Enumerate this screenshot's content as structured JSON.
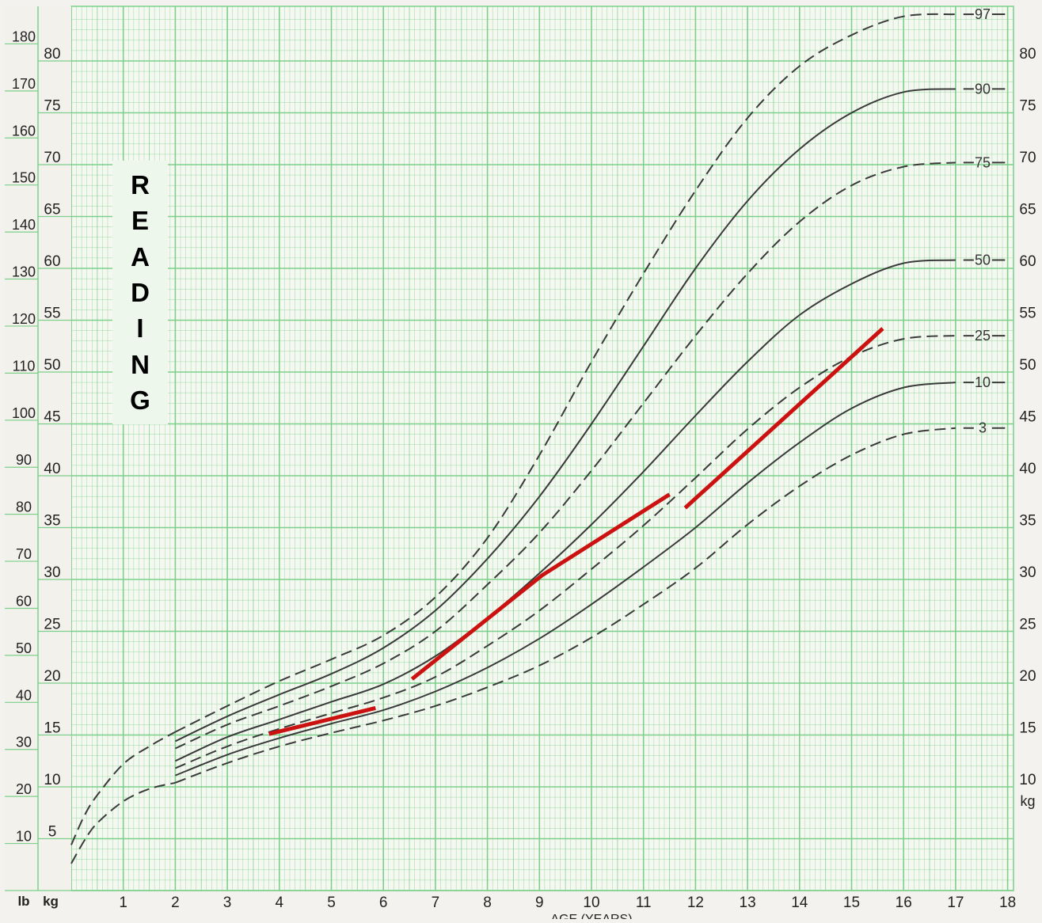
{
  "chart_data": {
    "type": "line",
    "title": "",
    "subtitle": "",
    "xlabel": "AGE (YEARS)",
    "ylabel_left_primary": "lb",
    "ylabel_left_secondary": "kg",
    "ylabel_right": "kg",
    "x_ticks": [
      "1",
      "2",
      "3",
      "4",
      "5",
      "6",
      "7",
      "8",
      "9",
      "10",
      "11",
      "12",
      "13",
      "14",
      "15",
      "16",
      "17",
      "18"
    ],
    "xlim": [
      0,
      18
    ],
    "ylim_kg": [
      0,
      84
    ],
    "kg_ticks": [
      "5",
      "10",
      "15",
      "20",
      "25",
      "30",
      "35",
      "40",
      "45",
      "50",
      "55",
      "60",
      "65",
      "70",
      "75",
      "80"
    ],
    "kg_ticks_right": [
      "10",
      "15",
      "20",
      "25",
      "30",
      "35",
      "40",
      "45",
      "50",
      "55",
      "60",
      "65",
      "70",
      "75",
      "80"
    ],
    "lb_ticks": [
      "10",
      "20",
      "30",
      "40",
      "50",
      "60",
      "70",
      "80",
      "90",
      "100",
      "110",
      "120",
      "130",
      "140",
      "150",
      "160",
      "170",
      "180"
    ],
    "grid": true,
    "grid_color": "#7dcf8a",
    "percentile_color": "#3a3a3a",
    "series": [
      {
        "name": "97",
        "style": "dashed",
        "x": [
          2,
          3,
          4,
          5,
          6,
          7,
          8,
          9,
          10,
          11,
          12,
          13,
          14,
          15,
          16,
          17
        ],
        "y": [
          15.3,
          17.8,
          20.2,
          22.3,
          24.6,
          28.3,
          34.0,
          42.0,
          51.0,
          59.5,
          67.5,
          74.5,
          79.5,
          82.5,
          84.3,
          84.5
        ]
      },
      {
        "name": "90",
        "style": "solid",
        "x": [
          2,
          3,
          4,
          5,
          6,
          7,
          8,
          9,
          10,
          11,
          12,
          13,
          14,
          15,
          16,
          17
        ],
        "y": [
          14.4,
          16.8,
          18.9,
          20.9,
          23.4,
          27.0,
          32.0,
          38.0,
          45.0,
          52.5,
          60.0,
          66.5,
          71.5,
          75.0,
          77.0,
          77.3
        ]
      },
      {
        "name": "75",
        "style": "dashed",
        "x": [
          2,
          3,
          4,
          5,
          6,
          7,
          8,
          9,
          10,
          11,
          12,
          13,
          14,
          15,
          16,
          17
        ],
        "y": [
          13.7,
          16.0,
          17.8,
          19.7,
          21.9,
          25.0,
          29.5,
          34.5,
          40.5,
          47.0,
          53.5,
          59.5,
          64.5,
          68.0,
          69.8,
          70.2
        ]
      },
      {
        "name": "50",
        "style": "solid",
        "x": [
          2,
          3,
          4,
          5,
          6,
          7,
          8,
          9,
          10,
          11,
          12,
          13,
          14,
          15,
          16,
          17
        ],
        "y": [
          12.5,
          14.8,
          16.5,
          18.2,
          19.9,
          22.6,
          26.3,
          30.6,
          35.3,
          40.4,
          45.8,
          51.0,
          55.5,
          58.5,
          60.5,
          60.8
        ]
      },
      {
        "name": "25",
        "style": "dashed",
        "x": [
          2,
          3,
          4,
          5,
          6,
          7,
          8,
          9,
          10,
          11,
          12,
          13,
          14,
          15,
          16,
          17
        ],
        "y": [
          11.8,
          13.9,
          15.6,
          17.1,
          18.6,
          20.6,
          23.6,
          27.0,
          31.0,
          35.2,
          39.8,
          44.5,
          48.5,
          51.5,
          53.2,
          53.5
        ]
      },
      {
        "name": "10",
        "style": "solid",
        "x": [
          2,
          3,
          4,
          5,
          6,
          7,
          8,
          9,
          10,
          11,
          12,
          13,
          14,
          15,
          16,
          17
        ],
        "y": [
          11.1,
          13.1,
          14.7,
          16.1,
          17.4,
          19.2,
          21.5,
          24.3,
          27.6,
          31.2,
          35.0,
          39.3,
          43.2,
          46.5,
          48.5,
          49.0
        ]
      },
      {
        "name": "3",
        "style": "dashed",
        "x": [
          2,
          3,
          4,
          5,
          6,
          7,
          8,
          9,
          10,
          11,
          12,
          13,
          14,
          15,
          16,
          17
        ],
        "y": [
          10.4,
          12.3,
          13.9,
          15.2,
          16.4,
          17.8,
          19.6,
          21.7,
          24.4,
          27.6,
          31.1,
          35.3,
          39.0,
          42.0,
          44.0,
          44.6
        ]
      }
    ],
    "infant_curves": [
      {
        "style": "dashed",
        "x": [
          0,
          0.25,
          0.5,
          1,
          1.5,
          2
        ],
        "y": [
          4.4,
          7.2,
          9.2,
          12.2,
          13.9,
          15.3
        ]
      },
      {
        "style": "dashed",
        "x": [
          0,
          0.25,
          0.5,
          1,
          1.5,
          2
        ],
        "y": [
          2.6,
          4.8,
          6.5,
          8.6,
          9.8,
          10.4
        ]
      }
    ],
    "annotations": [
      {
        "text": "READING",
        "type": "vertical-label"
      }
    ],
    "highlight_segments": [
      {
        "x": [
          3.8,
          5.85
        ],
        "y": [
          15.1,
          17.6
        ]
      },
      {
        "x": [
          6.55,
          9.05,
          11.5
        ],
        "y": [
          20.4,
          30.4,
          38.2
        ]
      },
      {
        "x": [
          11.8,
          15.6
        ],
        "y": [
          36.9,
          54.2
        ]
      }
    ],
    "highlight_color": "#cc1111"
  }
}
